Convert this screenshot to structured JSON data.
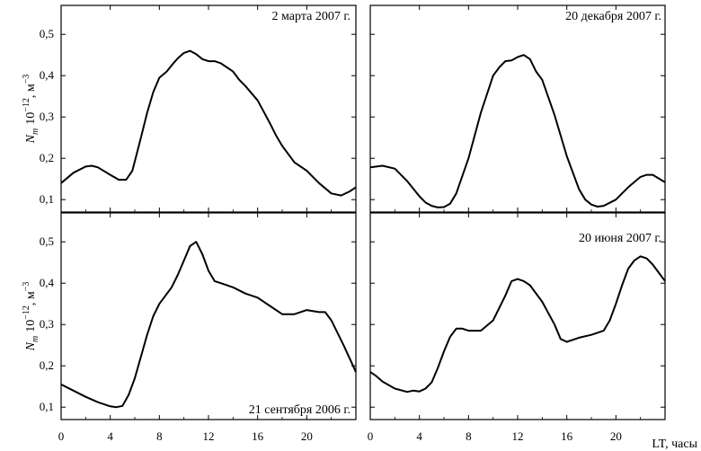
{
  "chart_data": [
    {
      "type": "line",
      "title": "2 марта 2007 г.",
      "xlim": [
        0,
        24
      ],
      "ylim": [
        0.07,
        0.57
      ],
      "x": [
        0,
        1,
        2,
        2.5,
        3,
        4,
        4.7,
        5.3,
        5.8,
        6.5,
        7,
        7.5,
        8,
        8.6,
        9,
        9.5,
        10,
        10.5,
        11,
        11.5,
        12,
        12.5,
        13,
        13.5,
        14,
        14.5,
        15,
        16,
        17,
        17.5,
        18,
        19,
        20,
        21,
        22,
        22.8,
        23.5,
        24
      ],
      "y": [
        0.14,
        0.165,
        0.18,
        0.182,
        0.178,
        0.16,
        0.148,
        0.148,
        0.17,
        0.25,
        0.31,
        0.36,
        0.395,
        0.41,
        0.425,
        0.442,
        0.455,
        0.46,
        0.452,
        0.44,
        0.435,
        0.435,
        0.43,
        0.42,
        0.41,
        0.39,
        0.375,
        0.34,
        0.285,
        0.255,
        0.23,
        0.19,
        0.17,
        0.14,
        0.115,
        0.11,
        0.12,
        0.13
      ]
    },
    {
      "type": "line",
      "title": "20 декабря 2007 г.",
      "xlim": [
        0,
        24
      ],
      "ylim": [
        0.07,
        0.57
      ],
      "x": [
        0,
        1,
        2,
        3,
        4,
        4.5,
        5,
        5.5,
        6,
        6.5,
        7,
        8,
        9,
        10,
        10.5,
        11,
        11.5,
        12,
        12.5,
        13,
        13.5,
        14,
        15,
        16,
        17,
        17.5,
        18,
        18.5,
        19,
        20,
        21,
        22,
        22.5,
        23,
        24
      ],
      "y": [
        0.178,
        0.182,
        0.175,
        0.145,
        0.108,
        0.093,
        0.085,
        0.081,
        0.082,
        0.09,
        0.115,
        0.2,
        0.31,
        0.4,
        0.42,
        0.435,
        0.437,
        0.445,
        0.45,
        0.44,
        0.41,
        0.39,
        0.305,
        0.205,
        0.125,
        0.1,
        0.088,
        0.083,
        0.085,
        0.1,
        0.13,
        0.155,
        0.16,
        0.16,
        0.142
      ]
    },
    {
      "type": "line",
      "title": "21 сентября 2006 г.",
      "xlim": [
        0,
        24
      ],
      "ylim": [
        0.07,
        0.57
      ],
      "x": [
        0,
        1,
        2,
        3,
        4,
        4.5,
        5,
        5.5,
        6,
        7,
        7.5,
        8,
        9,
        9.5,
        10,
        10.5,
        11,
        11.5,
        12,
        12.5,
        13,
        14,
        15,
        16,
        17,
        18,
        19,
        20,
        21,
        21.5,
        22,
        23,
        24
      ],
      "y": [
        0.155,
        0.14,
        0.125,
        0.112,
        0.102,
        0.1,
        0.103,
        0.13,
        0.17,
        0.275,
        0.32,
        0.35,
        0.39,
        0.42,
        0.455,
        0.49,
        0.5,
        0.47,
        0.43,
        0.405,
        0.4,
        0.39,
        0.375,
        0.365,
        0.345,
        0.325,
        0.325,
        0.335,
        0.33,
        0.33,
        0.31,
        0.25,
        0.185
      ]
    },
    {
      "type": "line",
      "title": "20 июня 2007 г.",
      "xlim": [
        0,
        24
      ],
      "ylim": [
        0.07,
        0.57
      ],
      "x": [
        0,
        0.5,
        1,
        2,
        3,
        3.5,
        4,
        4.5,
        5,
        5.5,
        6,
        6.5,
        7,
        7.5,
        8,
        9,
        10,
        11,
        11.5,
        12,
        12.5,
        13,
        14,
        15,
        15.5,
        16,
        17,
        18,
        19,
        19.5,
        20,
        20.5,
        21,
        21.5,
        22,
        22.5,
        23,
        24
      ],
      "y": [
        0.185,
        0.175,
        0.162,
        0.145,
        0.137,
        0.14,
        0.138,
        0.145,
        0.16,
        0.195,
        0.235,
        0.27,
        0.29,
        0.29,
        0.285,
        0.285,
        0.31,
        0.37,
        0.405,
        0.41,
        0.405,
        0.395,
        0.355,
        0.3,
        0.265,
        0.258,
        0.268,
        0.275,
        0.285,
        0.31,
        0.35,
        0.395,
        0.435,
        0.455,
        0.465,
        0.46,
        0.445,
        0.405
      ]
    }
  ],
  "axes": {
    "ylabel_main": "N",
    "ylabel_sub": "m",
    "ylabel_factor": "10",
    "ylabel_exp": "−12",
    "ylabel_unit": ", м",
    "ylabel_unit_exp": "−3",
    "xlabel": "LT, часы",
    "yticks": [
      "0,1",
      "0,2",
      "0,3",
      "0,4",
      "0,5"
    ],
    "xticks_left": [
      "0",
      "4",
      "8",
      "12",
      "16",
      "20"
    ],
    "xticks_right": [
      "0",
      "4",
      "8",
      "12",
      "16",
      "20"
    ]
  }
}
